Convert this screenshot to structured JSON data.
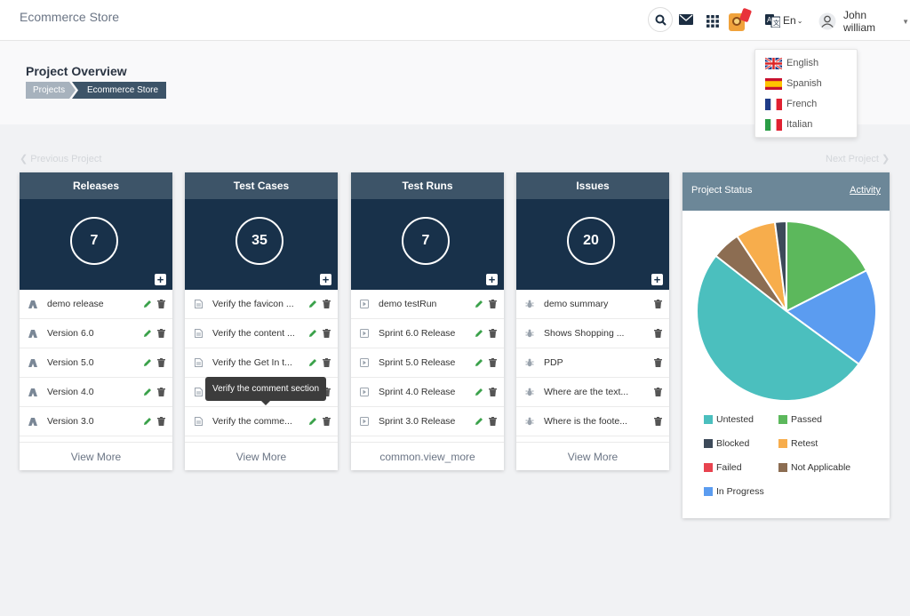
{
  "app": {
    "brand": "Ecommerce Store"
  },
  "topbar": {
    "icons": [
      "search-icon",
      "mail-icon",
      "apps-grid-icon",
      "new-badge-icon",
      "translate-icon",
      "user-icon",
      "caret-down-icon"
    ],
    "language": "En",
    "user_name": "John william"
  },
  "language_menu": {
    "items": [
      {
        "label": "English",
        "flag": "uk-flag-icon"
      },
      {
        "label": "Spanish",
        "flag": "spain-flag-icon"
      },
      {
        "label": "French",
        "flag": "france-flag-icon"
      },
      {
        "label": "Italian",
        "flag": "italy-flag-icon"
      }
    ]
  },
  "page": {
    "title": "Project Overview",
    "breadcrumb": [
      "Projects",
      "Ecommerce Store"
    ],
    "prev_label": "Previous Project",
    "next_label": "Next Project"
  },
  "cards": [
    {
      "title": "Releases",
      "count": "7",
      "view_more": "View More",
      "icon": "release-icon",
      "items": [
        "demo release",
        "Version 6.0",
        "Version 5.0",
        "Version 4.0",
        "Version 3.0"
      ],
      "edit": true
    },
    {
      "title": "Test Cases",
      "count": "35",
      "view_more": "View More",
      "icon": "document-icon",
      "items": [
        "Verify the favicon ...",
        "Verify the content ...",
        "Verify the Get In t...",
        "",
        "Verify the comme..."
      ],
      "edit": true
    },
    {
      "title": "Test Runs",
      "count": "7",
      "view_more": "common.view_more",
      "icon": "play-icon",
      "items": [
        "demo testRun",
        "Sprint 6.0 Release",
        "Sprint 5.0 Release",
        "Sprint 4.0 Release",
        "Sprint 3.0 Release"
      ],
      "edit": true
    },
    {
      "title": "Issues",
      "count": "20",
      "view_more": "View More",
      "icon": "bug-icon",
      "items": [
        "demo summary",
        "Shows Shopping ...",
        "PDP",
        "Where are the text...",
        "Where is the foote..."
      ],
      "edit": false
    }
  ],
  "tooltip": {
    "text": "Verify the comment section"
  },
  "status": {
    "title": "Project Status",
    "link": "Activity",
    "colors": {
      "Untested": "#4bbfbe",
      "Passed": "#5cb85c",
      "Blocked": "#3d4a5a",
      "Retest": "#f7ad4c",
      "Failed": "#e8434f",
      "Not Applicable": "#8c6d52",
      "In Progress": "#5b9cf0"
    },
    "legend": [
      "Untested",
      "Passed",
      "Blocked",
      "Retest",
      "Failed",
      "Not Applicable",
      "In Progress"
    ]
  },
  "chart_data": {
    "type": "pie",
    "labels": [
      "Passed",
      "In Progress",
      "Untested",
      "Not Applicable",
      "Retest",
      "Blocked",
      "Failed"
    ],
    "values": [
      17,
      17,
      49,
      5,
      7,
      2,
      0
    ],
    "colors": [
      "#5cb85c",
      "#5b9cf0",
      "#4bbfbe",
      "#8c6d52",
      "#f7ad4c",
      "#3d4a5a",
      "#e8434f"
    ]
  }
}
